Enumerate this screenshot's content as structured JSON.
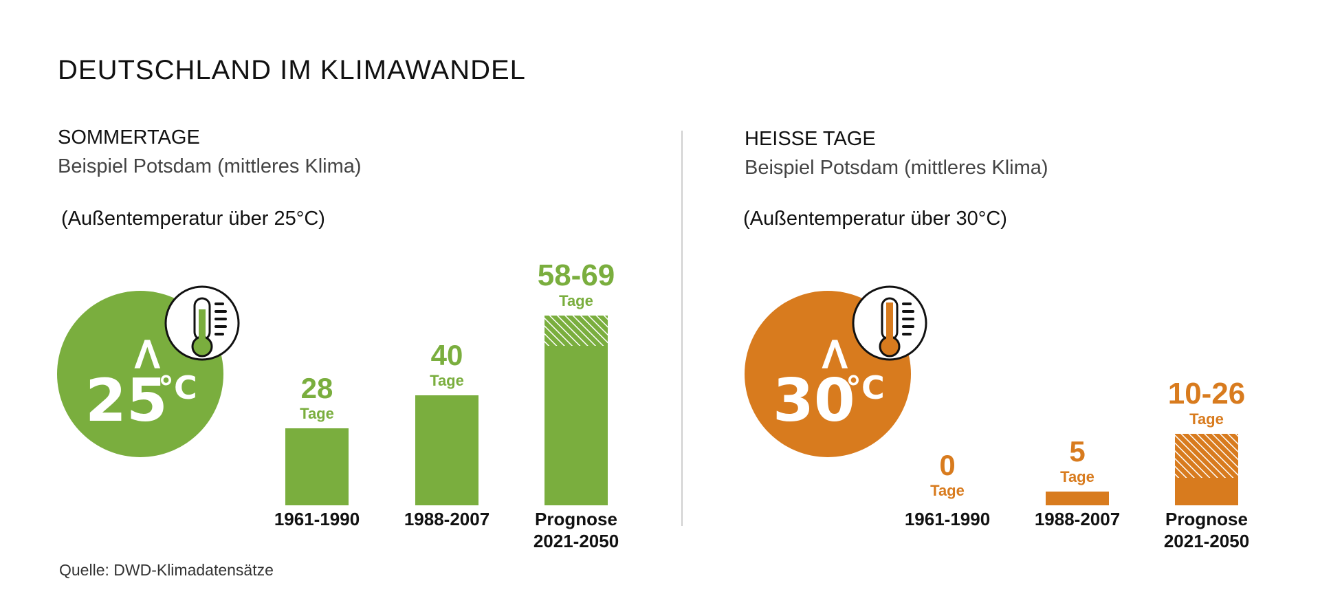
{
  "title": "DEUTSCHLAND IM KLIMAWANDEL",
  "source": "Quelle: DWD-Klimadatensätze",
  "colors": {
    "green": "#7aae3e",
    "orange": "#d87b1e",
    "divider": "#cfcfcf"
  },
  "panels": [
    {
      "title": "SOMMERTAGE",
      "subtitle": "Beispiel Potsdam (mittleres Klima)",
      "condition": "(Außentemperatur über 25°C)",
      "badge": {
        "symbol": ">",
        "value": "25",
        "unit": "°C",
        "icon": "thermometer-icon"
      },
      "color": "#7aae3e"
    },
    {
      "title": "HEISSE TAGE",
      "subtitle": "Beispiel Potsdam (mittleres Klima)",
      "condition": "(Außentemperatur über 30°C)",
      "badge": {
        "symbol": ">",
        "value": "30",
        "unit": "°C",
        "icon": "thermometer-icon"
      },
      "color": "#d87b1e"
    }
  ],
  "chart_data": [
    {
      "type": "bar",
      "categories": [
        "1961-1990",
        "1988-2007",
        "Prognose 2021-2050"
      ],
      "category_lines": [
        [
          "1961-1990"
        ],
        [
          "1988-2007"
        ],
        [
          "Prognose",
          "2021-2050"
        ]
      ],
      "values": [
        28,
        40,
        [
          58,
          69
        ]
      ],
      "value_labels": [
        "28",
        "40",
        "58-69"
      ],
      "unit_label": "Tage",
      "ylim": [
        0,
        69
      ],
      "range_hatched": true
    },
    {
      "type": "bar",
      "categories": [
        "1961-1990",
        "1988-2007",
        "Prognose 2021-2050"
      ],
      "category_lines": [
        [
          "1961-1990"
        ],
        [
          "1988-2007"
        ],
        [
          "Prognose",
          "2021-2050"
        ]
      ],
      "values": [
        0,
        5,
        [
          10,
          26
        ]
      ],
      "value_labels": [
        "0",
        "5",
        "10-26"
      ],
      "unit_label": "Tage",
      "ylim": [
        0,
        69
      ],
      "range_hatched": true
    }
  ]
}
